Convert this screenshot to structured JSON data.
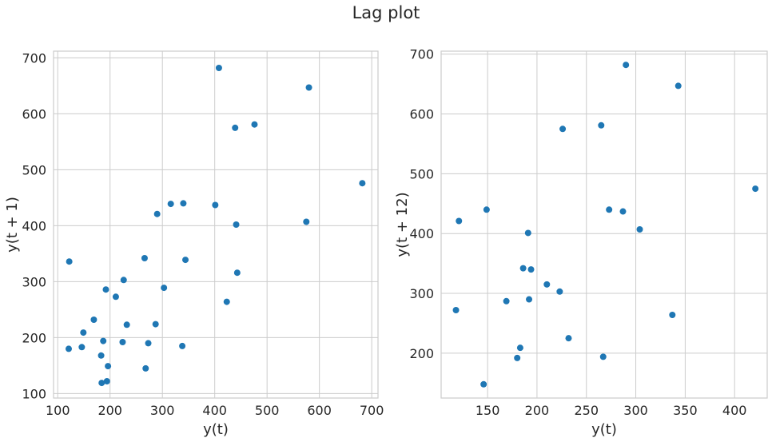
{
  "figure": {
    "title": "Lag plot"
  },
  "chart_data": [
    {
      "type": "scatter",
      "title": "",
      "xlabel": "y(t)",
      "ylabel": "y(t + 1)",
      "xlim": [
        92,
        712
      ],
      "ylim": [
        92,
        712
      ],
      "xticks": [
        100,
        200,
        300,
        400,
        500,
        600,
        700
      ],
      "yticks": [
        100,
        200,
        300,
        400,
        500,
        600,
        700
      ],
      "grid": true,
      "marker_color": "#1f77b4",
      "points": [
        {
          "x": 122,
          "y": 336
        },
        {
          "x": 121,
          "y": 180
        },
        {
          "x": 146,
          "y": 183
        },
        {
          "x": 149,
          "y": 209
        },
        {
          "x": 169,
          "y": 232
        },
        {
          "x": 183,
          "y": 168
        },
        {
          "x": 184,
          "y": 119
        },
        {
          "x": 187,
          "y": 194
        },
        {
          "x": 192,
          "y": 286
        },
        {
          "x": 194,
          "y": 122
        },
        {
          "x": 196,
          "y": 149
        },
        {
          "x": 211,
          "y": 273
        },
        {
          "x": 224,
          "y": 192
        },
        {
          "x": 226,
          "y": 303
        },
        {
          "x": 232,
          "y": 223
        },
        {
          "x": 266,
          "y": 342
        },
        {
          "x": 268,
          "y": 145
        },
        {
          "x": 273,
          "y": 190
        },
        {
          "x": 287,
          "y": 224
        },
        {
          "x": 290,
          "y": 421
        },
        {
          "x": 303,
          "y": 289
        },
        {
          "x": 316,
          "y": 439
        },
        {
          "x": 338,
          "y": 185
        },
        {
          "x": 340,
          "y": 440
        },
        {
          "x": 344,
          "y": 339
        },
        {
          "x": 401,
          "y": 437
        },
        {
          "x": 408,
          "y": 682
        },
        {
          "x": 423,
          "y": 264
        },
        {
          "x": 439,
          "y": 575
        },
        {
          "x": 441,
          "y": 402
        },
        {
          "x": 443,
          "y": 316
        },
        {
          "x": 476,
          "y": 581
        },
        {
          "x": 575,
          "y": 407
        },
        {
          "x": 580,
          "y": 647
        },
        {
          "x": 682,
          "y": 476
        }
      ]
    },
    {
      "type": "scatter",
      "title": "",
      "xlabel": "y(t)",
      "ylabel": "y(t + 12)",
      "xlim": [
        103,
        433
      ],
      "ylim": [
        125,
        705
      ],
      "xticks": [
        150,
        200,
        250,
        300,
        350,
        400
      ],
      "yticks": [
        200,
        300,
        400,
        500,
        600,
        700
      ],
      "grid": true,
      "marker_color": "#1f77b4",
      "points": [
        {
          "x": 118,
          "y": 272
        },
        {
          "x": 121,
          "y": 421
        },
        {
          "x": 146,
          "y": 148
        },
        {
          "x": 149,
          "y": 440
        },
        {
          "x": 169,
          "y": 287
        },
        {
          "x": 180,
          "y": 192
        },
        {
          "x": 183,
          "y": 209
        },
        {
          "x": 186,
          "y": 342
        },
        {
          "x": 191,
          "y": 401
        },
        {
          "x": 192,
          "y": 290
        },
        {
          "x": 194,
          "y": 340
        },
        {
          "x": 210,
          "y": 315
        },
        {
          "x": 223,
          "y": 303
        },
        {
          "x": 226,
          "y": 575
        },
        {
          "x": 232,
          "y": 225
        },
        {
          "x": 265,
          "y": 581
        },
        {
          "x": 267,
          "y": 194
        },
        {
          "x": 273,
          "y": 440
        },
        {
          "x": 287,
          "y": 437
        },
        {
          "x": 290,
          "y": 682
        },
        {
          "x": 304,
          "y": 407
        },
        {
          "x": 337,
          "y": 264
        },
        {
          "x": 343,
          "y": 647
        },
        {
          "x": 421,
          "y": 475
        }
      ]
    }
  ]
}
